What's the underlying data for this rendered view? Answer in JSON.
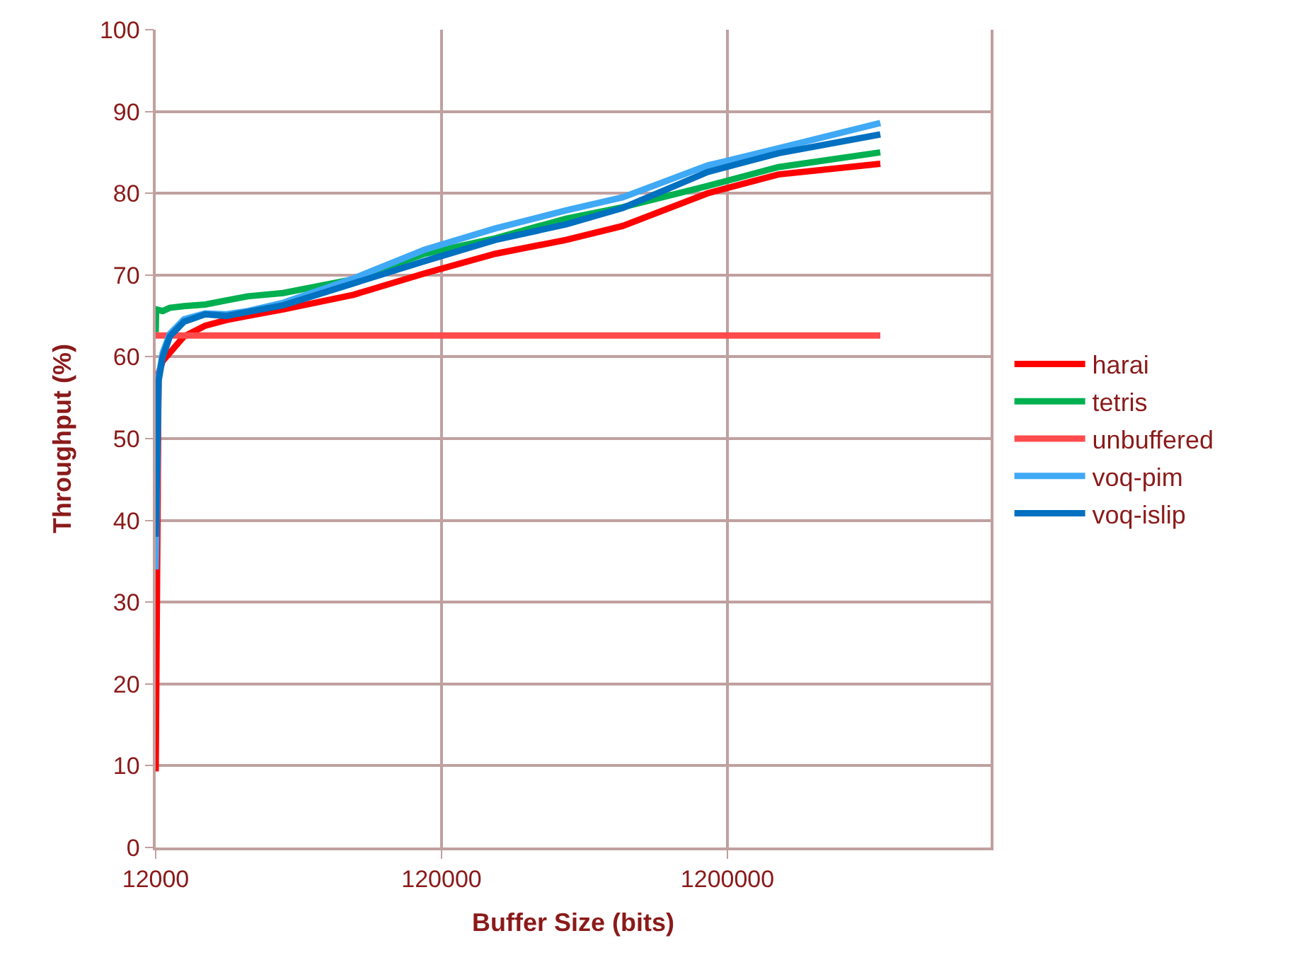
{
  "chart_data": {
    "type": "line",
    "xlabel": "Buffer Size (bits)",
    "ylabel": "Throughput (%)",
    "log": "x",
    "xlim": [
      12000,
      10000000
    ],
    "xticks": [
      12000,
      120000,
      1200000
    ],
    "ylim": [
      0,
      100
    ],
    "yticks": [
      0,
      10,
      20,
      30,
      40,
      50,
      60,
      70,
      80,
      90,
      100
    ],
    "grid": true,
    "legend": "right",
    "marker": "none",
    "line_style": "solid",
    "series": [
      {
        "name": "harai",
        "color": "#ff0000",
        "x": [
          12000,
          12280,
          12700,
          13450,
          15080,
          17880,
          21210,
          25180,
          33470,
          59200,
          104600,
          185100,
          327200,
          516300,
          1023000,
          1809000,
          4112000
        ],
        "values": [
          9.3,
          58,
          59.5,
          60.5,
          62.5,
          63.8,
          64.5,
          65,
          65.8,
          67.6,
          70.2,
          72.6,
          74.3,
          76,
          80,
          82.3,
          83.6
        ]
      },
      {
        "name": "tetris",
        "color": "#00b050",
        "x": [
          12000,
          12050,
          12700,
          13450,
          15080,
          17880,
          21210,
          25180,
          33470,
          59200,
          104600,
          185100,
          327200,
          516300,
          1023000,
          1809000,
          4112000
        ],
        "values": [
          63,
          65.8,
          65.6,
          66,
          66.2,
          66.4,
          66.9,
          67.4,
          67.8,
          69.5,
          72.6,
          74.5,
          76.9,
          78.3,
          80.9,
          83.2,
          85
        ]
      },
      {
        "name": "unbuffered",
        "color": "#ff4b4b",
        "x": [
          12000,
          4112000
        ],
        "values": [
          62.6,
          62.6
        ]
      },
      {
        "name": "voq-pim",
        "color": "#3fa9f5",
        "x": [
          12000,
          12280,
          12700,
          13450,
          15080,
          17880,
          21210,
          25180,
          33470,
          59200,
          104600,
          185100,
          327200,
          516300,
          1023000,
          1809000,
          4112000
        ],
        "values": [
          34,
          57.5,
          60.5,
          62.8,
          64.6,
          65.3,
          65.2,
          65.6,
          66.6,
          69.6,
          73.1,
          75.7,
          77.9,
          79.5,
          83.4,
          85.5,
          88.6
        ]
      },
      {
        "name": "voq-islip",
        "color": "#0070c0",
        "x": [
          12000,
          12280,
          12700,
          13450,
          15080,
          17880,
          21210,
          25180,
          33470,
          59200,
          104600,
          185100,
          327200,
          516300,
          1023000,
          1809000,
          4112000
        ],
        "values": [
          38,
          57,
          60,
          62.5,
          64.3,
          65.2,
          65,
          65.5,
          66.3,
          69,
          71.7,
          74.3,
          76.2,
          78.2,
          82.6,
          84.9,
          87.2
        ]
      }
    ]
  }
}
